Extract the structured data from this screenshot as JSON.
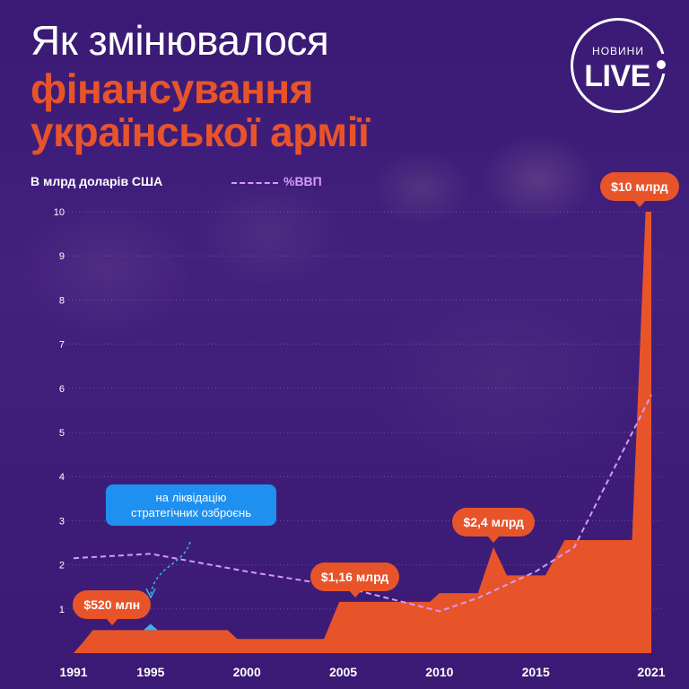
{
  "header": {
    "title_line1": "Як змінювалося",
    "title_line2": "фінансування",
    "title_line3": "української армії"
  },
  "logo": {
    "small": "НОВИНИ",
    "big": "LIVE"
  },
  "chart_data": {
    "type": "area",
    "ylabel": "В млрд доларів США",
    "ylim": [
      0,
      10
    ],
    "yticks": [
      "1",
      "2",
      "3",
      "4",
      "5",
      "6",
      "7",
      "8",
      "9",
      "10"
    ],
    "xticks": [
      "1991",
      "1995",
      "2000",
      "2005",
      "2010",
      "2015",
      "2021"
    ],
    "xlim": [
      1991,
      2021
    ],
    "series": [
      {
        "values": [
          [
            1991,
            0
          ],
          [
            1991.5,
            0.25
          ],
          [
            1992,
            0.52
          ],
          [
            1994,
            0.52
          ],
          [
            1995,
            0.52
          ],
          [
            1996,
            0.52
          ],
          [
            1999,
            0.52
          ],
          [
            1999.5,
            0.32
          ],
          [
            2003,
            0.32
          ],
          [
            2004,
            0.32
          ],
          [
            2004.8,
            1.16
          ],
          [
            2008,
            1.16
          ],
          [
            2009.5,
            1.16
          ],
          [
            2010,
            1.36
          ],
          [
            2012,
            1.36
          ],
          [
            2012.8,
            2.4
          ],
          [
            2013.5,
            1.76
          ],
          [
            2015.5,
            1.76
          ],
          [
            2016.5,
            2.56
          ],
          [
            2020,
            2.56
          ],
          [
            2020.7,
            10
          ],
          [
            2021,
            10
          ],
          [
            2021,
            0
          ]
        ]
      },
      {
        "name": "%ВВП",
        "values": [
          [
            1991,
            2.15
          ],
          [
            1995,
            2.25
          ],
          [
            2000,
            1.85
          ],
          [
            2005,
            1.5
          ],
          [
            2010,
            0.95
          ],
          [
            2012,
            1.25
          ],
          [
            2015,
            1.85
          ],
          [
            2017,
            2.4
          ],
          [
            2021,
            5.85
          ]
        ]
      }
    ],
    "annotations": [
      {
        "label": "$520 млн",
        "x": 1993,
        "y": 0.52
      },
      {
        "label": "$1,16 млрд",
        "x": 2005.6,
        "y": 1.16
      },
      {
        "label": "$2,4 млрд",
        "x": 2012.8,
        "y": 2.4
      },
      {
        "label": "$10 млрд",
        "x": 2020.4,
        "y": 10
      }
    ],
    "marker": {
      "x": 1995,
      "y": 0.52
    },
    "note": {
      "line1": "на ліквідацію",
      "line2": "стратегічних озброєнь"
    },
    "colors": {
      "area": "#e8542a",
      "gdp": "#d59cf4",
      "grid": "#ffffff",
      "note": "#1e90f0",
      "marker": "#39b3ee"
    }
  }
}
